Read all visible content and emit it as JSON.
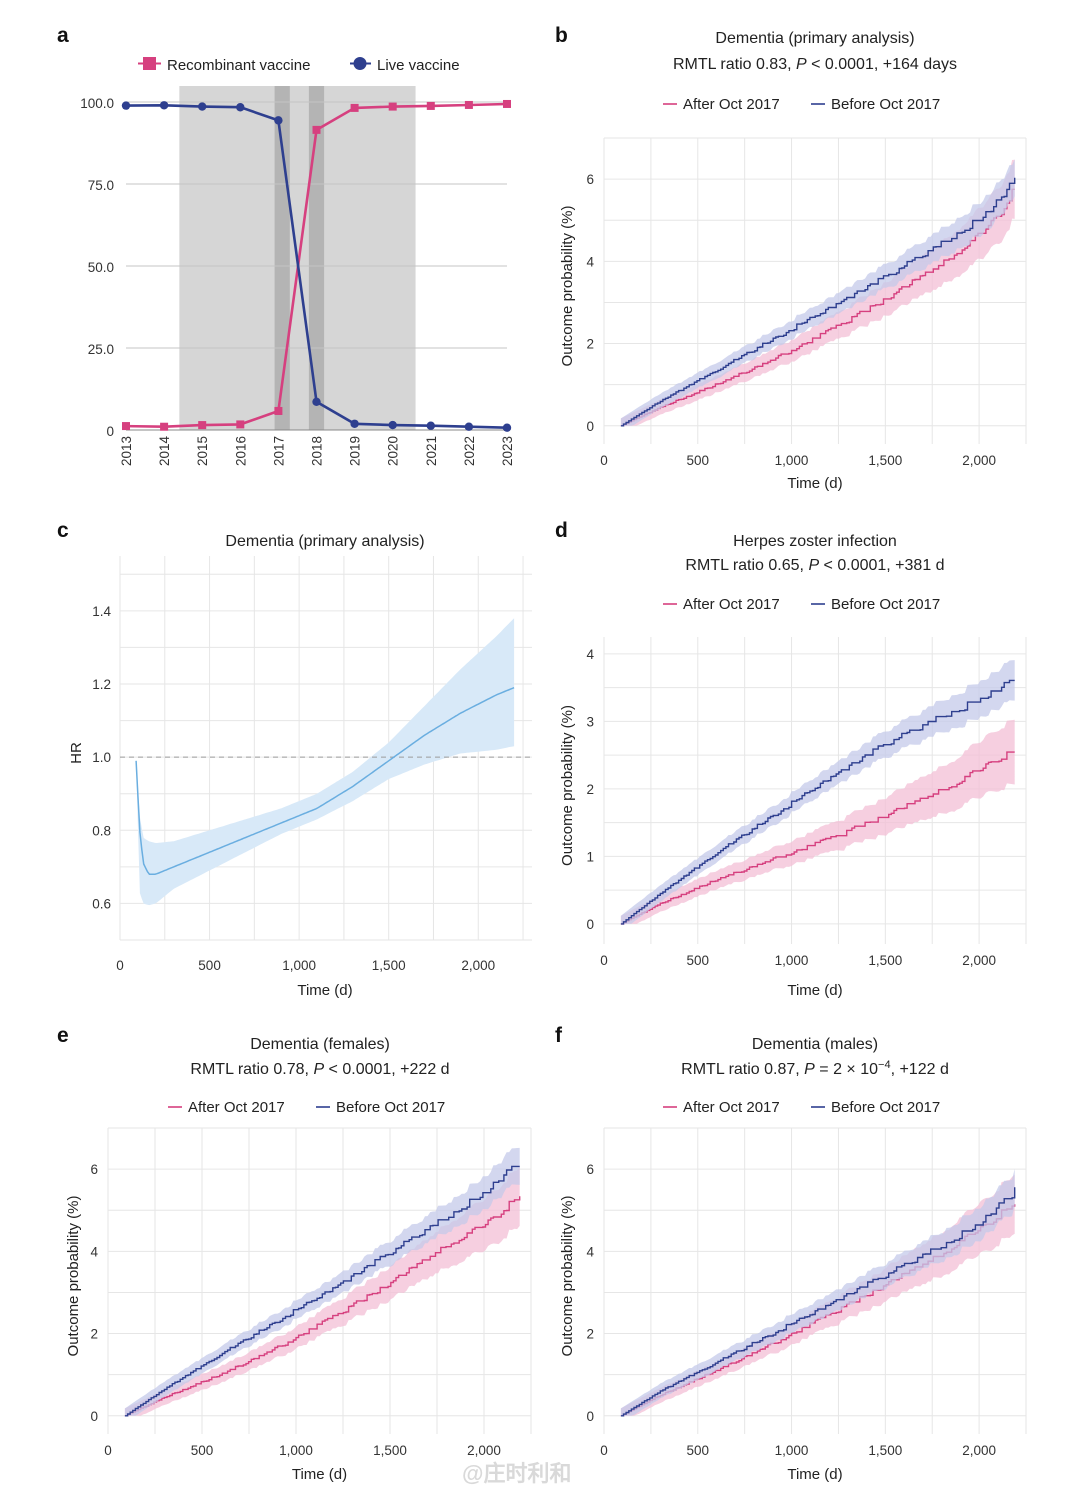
{
  "colors": {
    "pink": "#d6407f",
    "navy": "#2e3f8f",
    "teal_blue": "#3a6ea5",
    "hr_line": "#6aaee0",
    "hr_band": "#d8e9f8",
    "shade": "#d6d6d6",
    "shade_dark": "#b4b4b4"
  },
  "watermark": "@庄时利和",
  "chart_data": [
    {
      "panel": "a",
      "type": "line",
      "title": "",
      "legend": [
        "Recombinant vaccine",
        "Live vaccine"
      ],
      "categories": [
        "2013",
        "2014",
        "2015",
        "2016",
        "2017",
        "2018",
        "2019",
        "2020",
        "2021",
        "2022",
        "2023"
      ],
      "series": [
        {
          "name": "Recombinant vaccine",
          "values": [
            1.2,
            1.0,
            1.5,
            1.7,
            5.8,
            91.5,
            98.2,
            98.6,
            98.8,
            99.1,
            99.4
          ]
        },
        {
          "name": "Live vaccine",
          "values": [
            98.9,
            99.0,
            98.6,
            98.4,
            94.4,
            8.6,
            1.9,
            1.5,
            1.3,
            1.0,
            0.7
          ]
        }
      ],
      "yticks": [
        "0",
        "25.0",
        "50.0",
        "75.0",
        "100.0"
      ],
      "ylim": [
        0,
        100
      ],
      "shaded_years": [
        2014.4,
        2020.6
      ],
      "dark_bars": [
        [
          2016.9,
          2017.3
        ],
        [
          2017.8,
          2018.2
        ]
      ]
    },
    {
      "panel": "b",
      "type": "line",
      "title": "Dementia (primary analysis)",
      "subtitle_pre": "RMTL ratio 0.83, ",
      "subtitle_p": "P",
      "subtitle_post": " < 0.0001, +164 days",
      "legend": [
        "After Oct 2017",
        "Before Oct 2017"
      ],
      "xlabel": "Time (d)",
      "ylabel": "Outcome probability (%)",
      "xticks": [
        "0",
        "500",
        "1,000",
        "1,500",
        "2,000"
      ],
      "yticks": [
        "0",
        "2",
        "4",
        "6"
      ],
      "xlim": [
        0,
        2250
      ],
      "ylim": [
        -0.2,
        7
      ],
      "series": [
        {
          "name": "After Oct 2017",
          "x": [
            90,
            300,
            600,
            900,
            1200,
            1500,
            1800,
            2000,
            2100,
            2190
          ],
          "y": [
            0,
            0.45,
            1.0,
            1.6,
            2.3,
            3.05,
            3.9,
            4.6,
            5.1,
            5.75
          ]
        },
        {
          "name": "Before Oct 2017",
          "x": [
            90,
            300,
            600,
            900,
            1200,
            1500,
            1800,
            2000,
            2100,
            2190
          ],
          "y": [
            0,
            0.6,
            1.35,
            2.1,
            2.85,
            3.6,
            4.4,
            5.0,
            5.45,
            5.95
          ]
        }
      ]
    },
    {
      "panel": "c",
      "type": "line",
      "title": "Dementia (primary analysis)",
      "xlabel": "Time (d)",
      "ylabel": "HR",
      "xticks": [
        "0",
        "500",
        "1,000",
        "1,500",
        "2,000"
      ],
      "yticks": [
        "0.6",
        "0.8",
        "1.0",
        "1.2",
        "1.4"
      ],
      "xlim": [
        0,
        2300
      ],
      "ylim": [
        0.5,
        1.55
      ],
      "reference_line": 1.0,
      "series": [
        {
          "name": "HR",
          "x": [
            90,
            110,
            130,
            160,
            200,
            300,
            500,
            700,
            900,
            1100,
            1300,
            1500,
            1700,
            1900,
            2100,
            2200
          ],
          "y": [
            0.99,
            0.8,
            0.71,
            0.68,
            0.68,
            0.7,
            0.74,
            0.78,
            0.82,
            0.86,
            0.92,
            0.99,
            1.06,
            1.12,
            1.17,
            1.19
          ]
        },
        {
          "name": "CI upper",
          "x": [
            90,
            110,
            130,
            160,
            200,
            300,
            500,
            700,
            900,
            1100,
            1300,
            1500,
            1700,
            1900,
            2100,
            2200
          ],
          "y": [
            0.99,
            0.84,
            0.78,
            0.77,
            0.765,
            0.77,
            0.8,
            0.83,
            0.86,
            0.9,
            0.96,
            1.04,
            1.14,
            1.24,
            1.33,
            1.38
          ]
        },
        {
          "name": "CI lower",
          "x": [
            90,
            110,
            130,
            160,
            200,
            300,
            500,
            700,
            900,
            1100,
            1300,
            1500,
            1700,
            1900,
            2100,
            2200
          ],
          "y": [
            0.99,
            0.63,
            0.6,
            0.595,
            0.6,
            0.64,
            0.69,
            0.74,
            0.79,
            0.83,
            0.88,
            0.94,
            0.98,
            1.01,
            1.02,
            1.03
          ]
        }
      ]
    },
    {
      "panel": "d",
      "type": "line",
      "title": "Herpes zoster infection",
      "subtitle_pre": "RMTL ratio 0.65, ",
      "subtitle_p": "P",
      "subtitle_post": " < 0.0001, +381 d",
      "legend": [
        "After Oct 2017",
        "Before Oct 2017"
      ],
      "xlabel": "Time (d)",
      "ylabel": "Outcome probability (%)",
      "xticks": [
        "0",
        "500",
        "1,000",
        "1,500",
        "2,000"
      ],
      "yticks": [
        "0",
        "1",
        "2",
        "3",
        "4"
      ],
      "xlim": [
        0,
        2250
      ],
      "ylim": [
        -0.15,
        4.25
      ],
      "series": [
        {
          "name": "After Oct 2017",
          "x": [
            90,
            300,
            600,
            900,
            1200,
            1500,
            1800,
            2000,
            2100,
            2190
          ],
          "y": [
            0,
            0.3,
            0.65,
            0.95,
            1.25,
            1.58,
            1.95,
            2.25,
            2.45,
            2.5
          ]
        },
        {
          "name": "Before Oct 2017",
          "x": [
            90,
            300,
            600,
            900,
            1200,
            1500,
            1800,
            2000,
            2100,
            2190
          ],
          "y": [
            0,
            0.45,
            1.05,
            1.6,
            2.15,
            2.65,
            3.05,
            3.3,
            3.45,
            3.6
          ]
        }
      ]
    },
    {
      "panel": "e",
      "type": "line",
      "title": "Dementia (females)",
      "subtitle_pre": "RMTL ratio 0.78, ",
      "subtitle_p": "P",
      "subtitle_post": " < 0.0001, +222 d",
      "legend": [
        "After Oct 2017",
        "Before Oct 2017"
      ],
      "xlabel": "Time (d)",
      "ylabel": "Outcome probability (%)",
      "xticks": [
        "0",
        "500",
        "1,000",
        "1,500",
        "2,000"
      ],
      "yticks": [
        "0",
        "2",
        "4",
        "6"
      ],
      "xlim": [
        0,
        2250
      ],
      "ylim": [
        -0.2,
        7
      ],
      "series": [
        {
          "name": "After Oct 2017",
          "x": [
            90,
            300,
            600,
            900,
            1200,
            1500,
            1800,
            2000,
            2100,
            2190
          ],
          "y": [
            0,
            0.45,
            1.0,
            1.65,
            2.4,
            3.2,
            4.1,
            4.6,
            5.0,
            5.3
          ]
        },
        {
          "name": "Before Oct 2017",
          "x": [
            90,
            300,
            600,
            900,
            1200,
            1500,
            1800,
            2000,
            2100,
            2190
          ],
          "y": [
            0,
            0.65,
            1.5,
            2.3,
            3.1,
            3.95,
            4.8,
            5.4,
            5.8,
            6.15
          ]
        }
      ]
    },
    {
      "panel": "f",
      "type": "line",
      "title": "Dementia (males)",
      "subtitle_pre": "RMTL ratio 0.87, ",
      "subtitle_p": "P",
      "subtitle_eq": " = 2 × 10",
      "subtitle_sup": "−4",
      "subtitle_post": ", +122 d",
      "legend": [
        "After Oct 2017",
        "Before Oct 2017"
      ],
      "xlabel": "Time (d)",
      "ylabel": "Outcome probability (%)",
      "xticks": [
        "0",
        "500",
        "1,000",
        "1,500",
        "2,000"
      ],
      "yticks": [
        "0",
        "2",
        "4",
        "6"
      ],
      "xlim": [
        0,
        2250
      ],
      "ylim": [
        -0.2,
        7
      ],
      "series": [
        {
          "name": "After Oct 2017",
          "x": [
            90,
            300,
            600,
            900,
            1200,
            1500,
            1800,
            2000,
            2100,
            2190
          ],
          "y": [
            0,
            0.5,
            1.1,
            1.75,
            2.45,
            3.15,
            3.9,
            4.5,
            4.85,
            5.1
          ]
        },
        {
          "name": "Before Oct 2017",
          "x": [
            90,
            300,
            600,
            900,
            1200,
            1500,
            1800,
            2000,
            2100,
            2190
          ],
          "y": [
            0,
            0.6,
            1.3,
            2.0,
            2.7,
            3.4,
            4.1,
            4.65,
            5.05,
            5.45
          ]
        }
      ]
    }
  ]
}
